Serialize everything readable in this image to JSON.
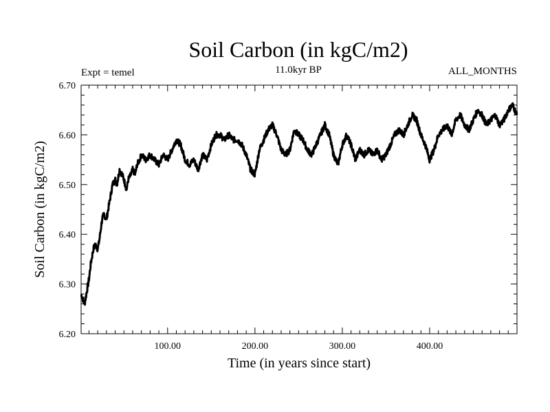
{
  "chart_data": {
    "type": "line",
    "title": "Soil Carbon (in kgC/m2)",
    "subtitle": "11.0kyr BP",
    "left_label": "Expt = temel",
    "right_label": "ALL_MONTHS",
    "xlabel": "Time (in years since start)",
    "ylabel": "Soil Carbon (in kgC/m2)",
    "xlim": [
      1,
      500
    ],
    "ylim": [
      6.2,
      6.7
    ],
    "x_ticks": [
      100,
      200,
      300,
      400
    ],
    "x_tick_labels": [
      "100.00",
      "200.00",
      "300.00",
      "400.00"
    ],
    "y_ticks": [
      6.2,
      6.3,
      6.4,
      6.5,
      6.6,
      6.7
    ],
    "y_tick_labels": [
      "6.20",
      "6.30",
      "6.40",
      "6.50",
      "6.60",
      "6.70"
    ],
    "line_color": "#000000",
    "series": [
      {
        "name": "Soil Carbon",
        "x": [
          1,
          3,
          5,
          8,
          10,
          12,
          15,
          17,
          20,
          22,
          25,
          27,
          30,
          32,
          35,
          37,
          40,
          42,
          45,
          48,
          50,
          53,
          55,
          58,
          60,
          63,
          65,
          68,
          70,
          75,
          80,
          85,
          90,
          95,
          100,
          105,
          110,
          115,
          120,
          125,
          130,
          135,
          140,
          145,
          150,
          155,
          160,
          165,
          170,
          175,
          180,
          185,
          190,
          195,
          200,
          205,
          210,
          215,
          220,
          225,
          230,
          235,
          240,
          245,
          250,
          255,
          260,
          265,
          270,
          275,
          280,
          285,
          290,
          295,
          300,
          305,
          310,
          315,
          320,
          325,
          330,
          335,
          340,
          345,
          350,
          355,
          360,
          365,
          370,
          375,
          380,
          385,
          390,
          395,
          400,
          405,
          410,
          415,
          420,
          425,
          430,
          435,
          440,
          445,
          450,
          455,
          460,
          465,
          470,
          475,
          480,
          485,
          490,
          495,
          500
        ],
        "values": [
          6.28,
          6.27,
          6.26,
          6.29,
          6.31,
          6.34,
          6.37,
          6.38,
          6.37,
          6.39,
          6.43,
          6.44,
          6.43,
          6.45,
          6.48,
          6.5,
          6.51,
          6.5,
          6.53,
          6.52,
          6.51,
          6.49,
          6.51,
          6.52,
          6.53,
          6.52,
          6.54,
          6.55,
          6.56,
          6.55,
          6.56,
          6.55,
          6.54,
          6.56,
          6.55,
          6.57,
          6.59,
          6.58,
          6.55,
          6.54,
          6.55,
          6.53,
          6.56,
          6.55,
          6.58,
          6.6,
          6.6,
          6.59,
          6.6,
          6.59,
          6.59,
          6.58,
          6.56,
          6.53,
          6.52,
          6.57,
          6.59,
          6.61,
          6.62,
          6.6,
          6.57,
          6.56,
          6.57,
          6.61,
          6.6,
          6.59,
          6.57,
          6.56,
          6.58,
          6.6,
          6.62,
          6.6,
          6.56,
          6.54,
          6.58,
          6.6,
          6.58,
          6.55,
          6.57,
          6.56,
          6.57,
          6.56,
          6.57,
          6.55,
          6.56,
          6.58,
          6.6,
          6.61,
          6.6,
          6.62,
          6.64,
          6.63,
          6.6,
          6.58,
          6.55,
          6.57,
          6.6,
          6.61,
          6.62,
          6.6,
          6.63,
          6.64,
          6.62,
          6.61,
          6.63,
          6.65,
          6.64,
          6.62,
          6.63,
          6.64,
          6.62,
          6.63,
          6.65,
          6.66,
          6.64
        ]
      }
    ]
  }
}
